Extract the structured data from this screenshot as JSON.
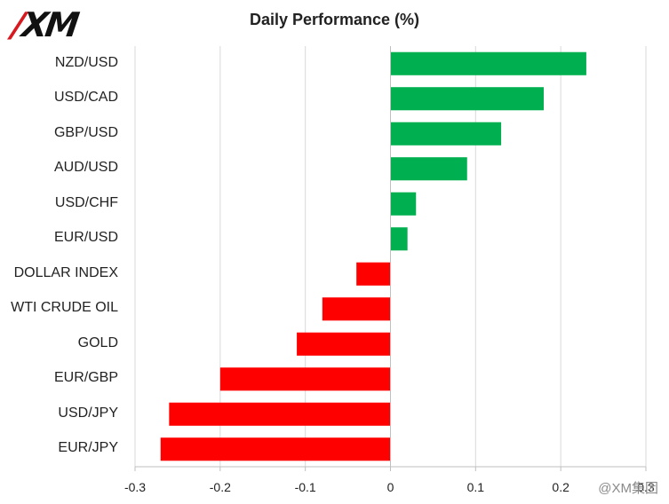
{
  "logo": {
    "prefix": "X",
    "text": "M",
    "slash": "/"
  },
  "watermark": "@XM集团",
  "colors": {
    "positive": "#00b050",
    "negative": "#ff0000",
    "grid": "#d9d9d9",
    "axis": "#bfbfbf"
  },
  "chart_data": {
    "type": "bar",
    "orientation": "horizontal",
    "title": "Daily Performance (%)",
    "xlabel": "",
    "ylabel": "",
    "categories": [
      "NZD/USD",
      "USD/CAD",
      "GBP/USD",
      "AUD/USD",
      "USD/CHF",
      "EUR/USD",
      "DOLLAR INDEX",
      "WTI CRUDE OIL",
      "GOLD",
      "EUR/GBP",
      "USD/JPY",
      "EUR/JPY"
    ],
    "values": [
      0.23,
      0.18,
      0.13,
      0.09,
      0.03,
      0.02,
      -0.04,
      -0.08,
      -0.11,
      -0.2,
      -0.26,
      -0.27
    ],
    "xlim": [
      -0.3,
      0.3
    ],
    "ticks": [
      "-0.3",
      "-0.2",
      "-0.1",
      "0",
      "0.1",
      "0.2",
      "0.3"
    ],
    "tick_values": [
      -0.3,
      -0.2,
      -0.1,
      0,
      0.1,
      0.2,
      0.3
    ],
    "grid": "vertical",
    "legend": "none"
  }
}
